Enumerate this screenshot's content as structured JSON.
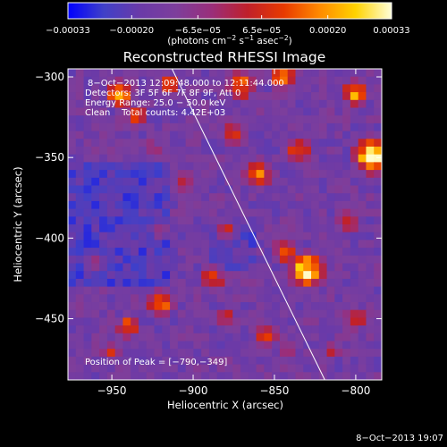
{
  "chart_data": {
    "type": "heatmap",
    "title": "Reconstructed RHESSI Image",
    "xlabel": "Heliocentric X (arcsec)",
    "ylabel": "Heliocentric Y (arcsec)",
    "xlim": [
      -977,
      -784
    ],
    "ylim": [
      -488,
      -295
    ],
    "x_ticks": [
      -950,
      -900,
      -850,
      -800
    ],
    "x_tick_labels": [
      "−950",
      "−900",
      "−850",
      "−800"
    ],
    "y_ticks": [
      -300,
      -350,
      -400,
      -450
    ],
    "y_tick_labels": [
      "−300",
      "−350",
      "−400",
      "−450"
    ],
    "colorbar": {
      "range": [
        -0.00033,
        0.00033
      ],
      "ticks": [
        -0.00033,
        -0.0002,
        -6.5e-05,
        6.5e-05,
        0.0002,
        0.00033
      ],
      "tick_labels": [
        "−0.00033",
        "−0.00020",
        "−6.5e−05",
        "6.5e−05",
        "0.00020",
        "0.00033"
      ],
      "unit_main": "(photons cm",
      "unit_sup1": "−2",
      "unit_mid": " s",
      "unit_sup2": "−1",
      "unit_mid2": " asec",
      "unit_sup3": "−2",
      "unit_end": ")"
    },
    "info_lines": [
      "8−Oct−2013 12:09:48.000 to 12:11:44.000",
      "Detectors: 3F 5F 6F 7F 8F 9F, Att 0",
      "Energy Range: 25.0 − 50.0 keV",
      "Clean    Total counts: 4.42E+03"
    ],
    "peak_label": "Position of Peak = [−790,−349]",
    "peak": [
      -790,
      -349
    ],
    "limb_line": [
      [
        -913,
        -295
      ],
      [
        -819,
        -488
      ]
    ],
    "grid": false
  },
  "timestamp": "8−Oct−2013 19:07",
  "colors": {
    "background": "#000000",
    "text": "#ffffff",
    "colormap": [
      "#0000ff",
      "#4040c8",
      "#6a3aa8",
      "#7d3e9c",
      "#9a2e7a",
      "#c0202a",
      "#e83a00",
      "#ff8a00",
      "#ffd200",
      "#ffffd8"
    ]
  }
}
